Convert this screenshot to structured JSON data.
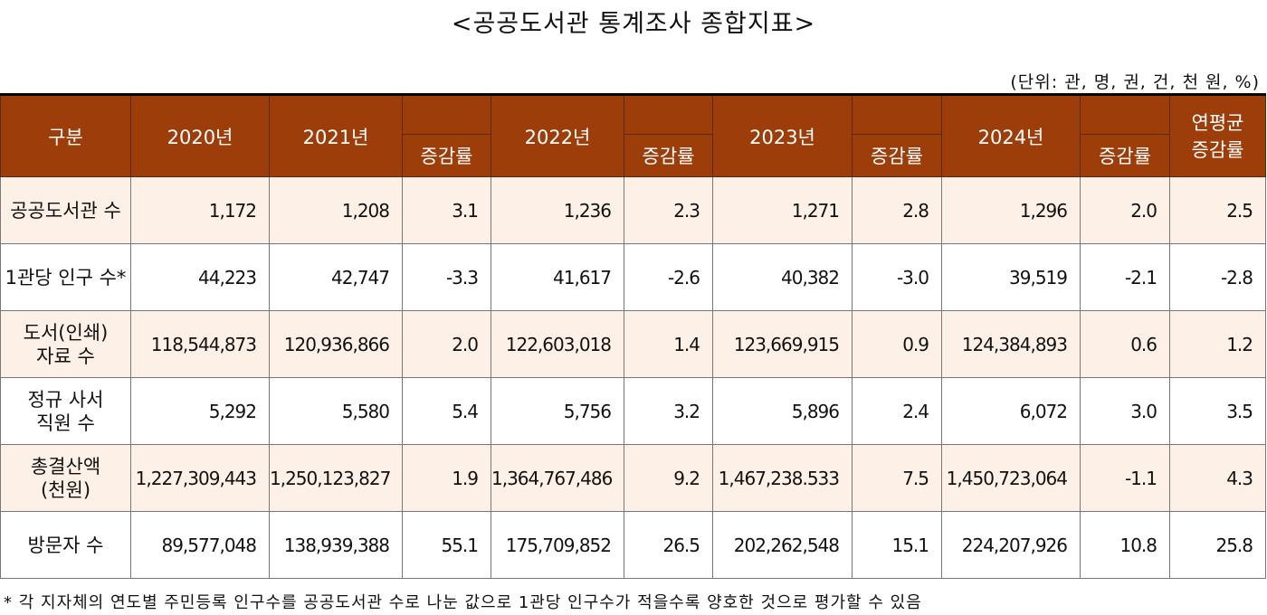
{
  "title": "<공공도서관 통계조사 종합지표>",
  "unit_note": "(단위: 관, 명, 권, 건, 천 원, %)",
  "header": {
    "category": "구분",
    "years": [
      "2020년",
      "2021년",
      "2022년",
      "2023년",
      "2024년"
    ],
    "change_label": "증감률",
    "avg_label": "연평균\n증감률"
  },
  "rows": [
    {
      "label": "공공도서관 수",
      "v2020": "1,172",
      "v2021": "1,208",
      "c2021": "3.1",
      "v2022": "1,236",
      "c2022": "2.3",
      "v2023": "1,271",
      "c2023": "2.8",
      "v2024": "1,296",
      "c2024": "2.0",
      "avg": "2.5"
    },
    {
      "label": "1관당 인구 수*",
      "v2020": "44,223",
      "v2021": "42,747",
      "c2021": "-3.3",
      "v2022": "41,617",
      "c2022": "-2.6",
      "v2023": "40,382",
      "c2023": "-3.0",
      "v2024": "39,519",
      "c2024": "-2.1",
      "avg": "-2.8"
    },
    {
      "label": "도서(인쇄)\n자료 수",
      "v2020": "118,544,873",
      "v2021": "120,936,866",
      "c2021": "2.0",
      "v2022": "122,603,018",
      "c2022": "1.4",
      "v2023": "123,669,915",
      "c2023": "0.9",
      "v2024": "124,384,893",
      "c2024": "0.6",
      "avg": "1.2"
    },
    {
      "label": "정규 사서\n직원 수",
      "v2020": "5,292",
      "v2021": "5,580",
      "c2021": "5.4",
      "v2022": "5,756",
      "c2022": "3.2",
      "v2023": "5,896",
      "c2023": "2.4",
      "v2024": "6,072",
      "c2024": "3.0",
      "avg": "3.5"
    },
    {
      "label": "총결산액\n(천원)",
      "v2020": "1,227,309,443",
      "v2021": "1,250,123,827",
      "c2021": "1.9",
      "v2022": "1,364,767,486",
      "c2022": "9.2",
      "v2023": "1,467,238.533",
      "c2023": "7.5",
      "v2024": "1,450,723,064",
      "c2024": "-1.1",
      "avg": "4.3"
    },
    {
      "label": "방문자 수",
      "v2020": "89,577,048",
      "v2021": "138,939,388",
      "c2021": "55.1",
      "v2022": "175,709,852",
      "c2022": "26.5",
      "v2023": "202,262,548",
      "c2023": "15.1",
      "v2024": "224,207,926",
      "c2024": "10.8",
      "avg": "25.8"
    }
  ],
  "footnote": "* 각 지자체의 연도별 주민등록 인구수를 공공도서관 수로 나눈 값으로 1관당 인구수가 적을수록 양호한 것으로 평가할 수 있음",
  "colors": {
    "header_bg": "#9c3d0a",
    "row_alt_bg": "#fdf0e6"
  }
}
